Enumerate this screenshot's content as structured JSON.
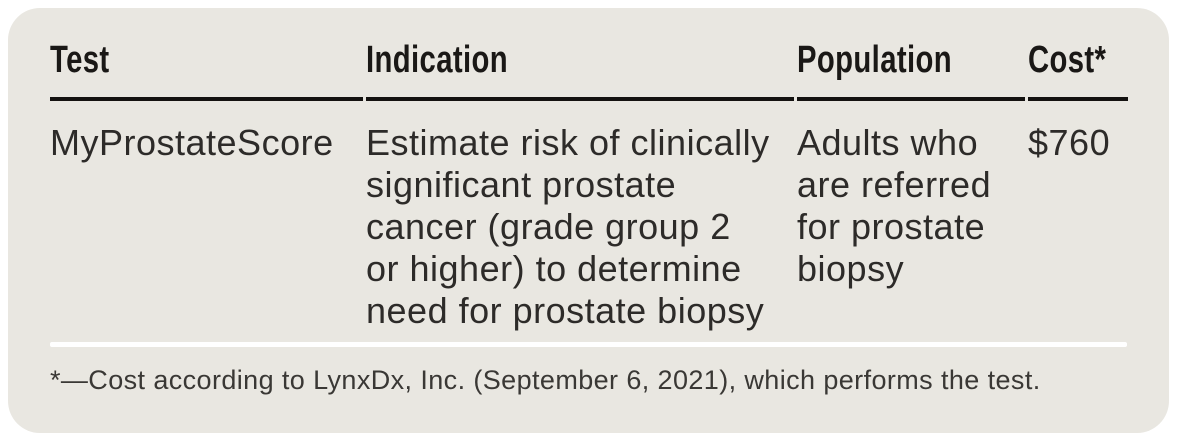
{
  "table": {
    "columns": [
      {
        "label": "Test"
      },
      {
        "label": "Indication"
      },
      {
        "label": "Population"
      },
      {
        "label": "Cost*"
      }
    ],
    "rows": [
      {
        "test": "MyProstateScore",
        "indication": [
          "Estimate risk of clinically",
          "significant prostate",
          "cancer (grade group 2",
          "or higher) to determine",
          "need for prostate biopsy"
        ],
        "population": [
          "Adults who",
          "are referred",
          "for prostate",
          "biopsy"
        ],
        "cost": "$760"
      }
    ],
    "footnote": "*—Cost according to LynxDx, Inc. (September 6, 2021), which performs the test."
  },
  "colors": {
    "card_background": "#e9e7e1",
    "page_background": "#ffffff",
    "header_rule": "#141210",
    "footnote_rule": "#ffffff",
    "header_text": "#1a1816",
    "body_text": "#2d2b29",
    "footnote_text": "#3a3835"
  }
}
